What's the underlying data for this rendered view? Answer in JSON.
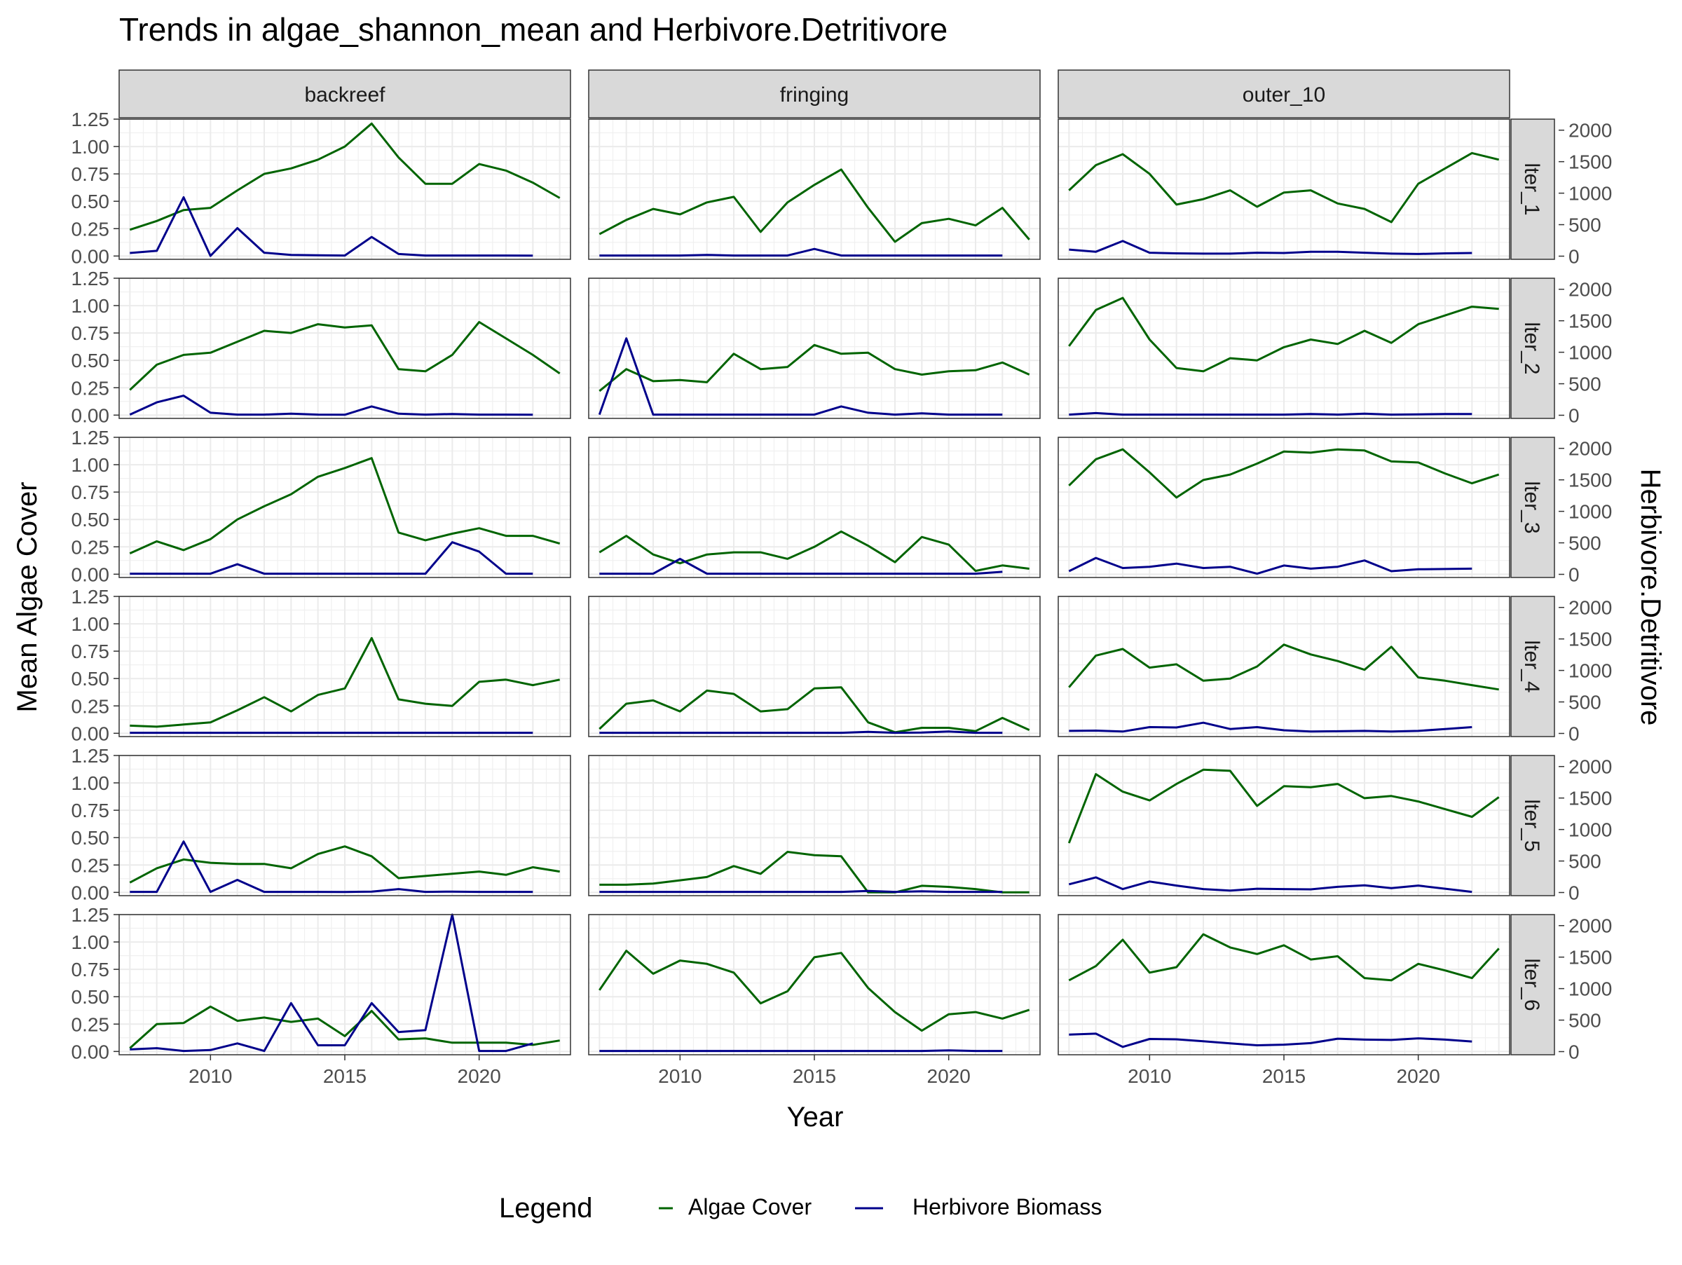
{
  "chart_data": {
    "type": "line",
    "title": "Trends in algae_shannon_mean and Herbivore.Detritivore",
    "xlabel": "Year",
    "ylabel": "Mean Algae Cover",
    "y2label": "Herbivore.Detritivore",
    "xlim": [
      2006.6,
      2023.4
    ],
    "ylim": [
      -0.03,
      1.25
    ],
    "y2lim": [
      -50,
      2175
    ],
    "x_ticks": [
      2010,
      2015,
      2020
    ],
    "y_ticks": [
      "0.00",
      "0.25",
      "0.50",
      "0.75",
      "1.00",
      "1.25"
    ],
    "y2_ticks": [
      "0",
      "500",
      "1000",
      "1500",
      "2000"
    ],
    "grid": true,
    "legend": {
      "title": "Legend",
      "position": "bottom",
      "entries": [
        {
          "label": "Algae Cover",
          "color": "#006400"
        },
        {
          "label": "Herbivore Biomass",
          "color": "#00008B"
        }
      ]
    },
    "facet_cols": [
      "backreef",
      "fringing",
      "outer_10"
    ],
    "facet_rows": [
      "lter_1",
      "lter_2",
      "lter_3",
      "lter_4",
      "lter_5",
      "lter_6"
    ],
    "algae_years": [
      2007,
      2008,
      2009,
      2010,
      2011,
      2012,
      2013,
      2014,
      2015,
      2016,
      2017,
      2018,
      2019,
      2020,
      2021,
      2022,
      2023
    ],
    "herb_years": [
      2007,
      2008,
      2009,
      2010,
      2011,
      2012,
      2013,
      2014,
      2015,
      2016,
      2017,
      2018,
      2019,
      2020,
      2021,
      2022
    ],
    "panels": [
      [
        {
          "algae": [
            0.24,
            0.32,
            0.42,
            0.44,
            0.6,
            0.75,
            0.8,
            0.88,
            1.0,
            1.21,
            0.9,
            0.66,
            0.66,
            0.84,
            0.78,
            0.67,
            0.53
          ],
          "herb": [
            50,
            85,
            935,
            5,
            445,
            55,
            20,
            15,
            10,
            305,
            35,
            10,
            10,
            10,
            10,
            8
          ]
        },
        {
          "algae": [
            0.23,
            0.46,
            0.55,
            0.57,
            0.67,
            0.77,
            0.75,
            0.83,
            0.8,
            0.82,
            0.42,
            0.4,
            0.55,
            0.85,
            0.7,
            0.55,
            0.38
          ],
          "herb": [
            10,
            205,
            310,
            40,
            10,
            10,
            25,
            10,
            8,
            140,
            25,
            10,
            20,
            10,
            10,
            8
          ]
        },
        {
          "algae": [
            0.19,
            0.3,
            0.22,
            0.32,
            0.5,
            0.62,
            0.73,
            0.89,
            0.97,
            1.06,
            0.38,
            0.31,
            0.37,
            0.42,
            0.35,
            0.35,
            0.28
          ],
          "herb": [
            10,
            10,
            10,
            10,
            160,
            10,
            10,
            10,
            10,
            10,
            10,
            10,
            510,
            360,
            10,
            10
          ]
        },
        {
          "algae": [
            0.07,
            0.06,
            0.08,
            0.1,
            0.21,
            0.33,
            0.2,
            0.35,
            0.41,
            0.87,
            0.31,
            0.27,
            0.25,
            0.47,
            0.49,
            0.44,
            0.49
          ],
          "herb": [
            10,
            10,
            10,
            10,
            10,
            10,
            10,
            10,
            10,
            10,
            10,
            10,
            10,
            10,
            10,
            10
          ]
        },
        {
          "algae": [
            0.09,
            0.22,
            0.3,
            0.27,
            0.26,
            0.26,
            0.22,
            0.35,
            0.42,
            0.33,
            0.13,
            0.15,
            0.17,
            0.19,
            0.16,
            0.23,
            0.19
          ],
          "herb": [
            10,
            10,
            810,
            10,
            200,
            10,
            10,
            10,
            8,
            15,
            55,
            10,
            15,
            10,
            10,
            10
          ]
        },
        {
          "algae": [
            0.03,
            0.25,
            0.26,
            0.41,
            0.28,
            0.31,
            0.27,
            0.3,
            0.14,
            0.37,
            0.11,
            0.12,
            0.08,
            0.08,
            0.08,
            0.06,
            0.1
          ],
          "herb": [
            35,
            55,
            10,
            25,
            130,
            10,
            770,
            100,
            100,
            770,
            310,
            340,
            2175,
            10,
            10,
            130
          ]
        }
      ],
      [
        {
          "algae": [
            0.2,
            0.33,
            0.43,
            0.38,
            0.49,
            0.54,
            0.22,
            0.49,
            0.65,
            0.79,
            0.44,
            0.13,
            0.3,
            0.34,
            0.28,
            0.44,
            0.15
          ],
          "herb": [
            10,
            10,
            10,
            10,
            20,
            10,
            10,
            10,
            115,
            10,
            10,
            10,
            10,
            10,
            10,
            10
          ]
        },
        {
          "algae": [
            0.22,
            0.42,
            0.31,
            0.32,
            0.3,
            0.56,
            0.42,
            0.44,
            0.64,
            0.56,
            0.57,
            0.42,
            0.37,
            0.4,
            0.41,
            0.48,
            0.37
          ],
          "herb": [
            10,
            1220,
            10,
            10,
            10,
            10,
            10,
            10,
            10,
            140,
            40,
            10,
            30,
            10,
            10,
            10
          ]
        },
        {
          "algae": [
            0.2,
            0.35,
            0.18,
            0.1,
            0.18,
            0.2,
            0.2,
            0.14,
            0.25,
            0.39,
            0.26,
            0.11,
            0.34,
            0.27,
            0.03,
            0.08,
            0.05
          ],
          "herb": [
            10,
            10,
            10,
            245,
            10,
            10,
            10,
            10,
            10,
            10,
            10,
            10,
            10,
            10,
            10,
            40
          ]
        },
        {
          "algae": [
            0.04,
            0.27,
            0.3,
            0.2,
            0.39,
            0.36,
            0.2,
            0.22,
            0.41,
            0.42,
            0.1,
            0.01,
            0.05,
            0.05,
            0.02,
            0.14,
            0.03
          ],
          "herb": [
            10,
            10,
            10,
            10,
            10,
            10,
            10,
            10,
            10,
            10,
            25,
            10,
            15,
            30,
            10,
            10
          ]
        },
        {
          "algae": [
            0.07,
            0.07,
            0.08,
            0.11,
            0.14,
            0.24,
            0.17,
            0.37,
            0.34,
            0.33,
            0.0,
            0.0,
            0.06,
            0.05,
            0.03,
            0.0,
            0.0
          ],
          "herb": [
            10,
            10,
            10,
            10,
            10,
            10,
            10,
            10,
            10,
            10,
            25,
            10,
            20,
            10,
            10,
            10
          ]
        },
        {
          "algae": [
            0.56,
            0.92,
            0.71,
            0.83,
            0.8,
            0.72,
            0.44,
            0.55,
            0.86,
            0.9,
            0.58,
            0.36,
            0.19,
            0.34,
            0.36,
            0.3,
            0.38
          ],
          "herb": [
            10,
            10,
            10,
            10,
            10,
            10,
            10,
            10,
            10,
            10,
            10,
            10,
            10,
            20,
            10,
            10
          ]
        }
      ],
      [
        {
          "algae": [
            0.6,
            0.83,
            0.93,
            0.75,
            0.47,
            0.52,
            0.6,
            0.45,
            0.58,
            0.6,
            0.48,
            0.43,
            0.31,
            0.66,
            0.8,
            0.94,
            0.88
          ],
          "herb": [
            105,
            70,
            240,
            55,
            45,
            40,
            40,
            55,
            50,
            70,
            70,
            55,
            40,
            35,
            45,
            50
          ]
        },
        {
          "algae": [
            0.63,
            0.96,
            1.07,
            0.69,
            0.43,
            0.4,
            0.52,
            0.5,
            0.62,
            0.69,
            0.65,
            0.77,
            0.66,
            0.83,
            0.91,
            0.99,
            0.97
          ],
          "herb": [
            10,
            35,
            10,
            10,
            10,
            10,
            10,
            10,
            10,
            20,
            10,
            25,
            10,
            15,
            20,
            20
          ]
        },
        {
          "algae": [
            0.81,
            1.05,
            1.14,
            0.93,
            0.7,
            0.86,
            0.91,
            1.01,
            1.12,
            1.11,
            1.14,
            1.13,
            1.03,
            1.02,
            0.92,
            0.83,
            0.91
          ],
          "herb": [
            50,
            260,
            100,
            120,
            170,
            100,
            120,
            10,
            140,
            90,
            120,
            220,
            50,
            80,
            85,
            90
          ]
        },
        {
          "algae": [
            0.42,
            0.71,
            0.77,
            0.6,
            0.63,
            0.48,
            0.5,
            0.61,
            0.81,
            0.72,
            0.66,
            0.58,
            0.79,
            0.51,
            0.48,
            0.44,
            0.4
          ],
          "herb": [
            40,
            45,
            30,
            100,
            95,
            170,
            70,
            100,
            50,
            30,
            35,
            40,
            30,
            40,
            70,
            100
          ]
        },
        {
          "algae": [
            0.45,
            1.08,
            0.92,
            0.84,
            0.99,
            1.12,
            1.11,
            0.79,
            0.97,
            0.96,
            0.99,
            0.86,
            0.88,
            0.83,
            0.76,
            0.69,
            0.87
          ],
          "herb": [
            130,
            240,
            55,
            175,
            110,
            55,
            30,
            60,
            55,
            50,
            90,
            115,
            70,
            110,
            60,
            10
          ]
        },
        {
          "algae": [
            0.65,
            0.78,
            1.02,
            0.72,
            0.77,
            1.07,
            0.95,
            0.89,
            0.97,
            0.84,
            0.87,
            0.67,
            0.65,
            0.8,
            0.74,
            0.67,
            0.94
          ],
          "herb": [
            270,
            285,
            75,
            200,
            195,
            165,
            130,
            100,
            110,
            135,
            205,
            190,
            185,
            210,
            190,
            160
          ]
        }
      ]
    ]
  }
}
